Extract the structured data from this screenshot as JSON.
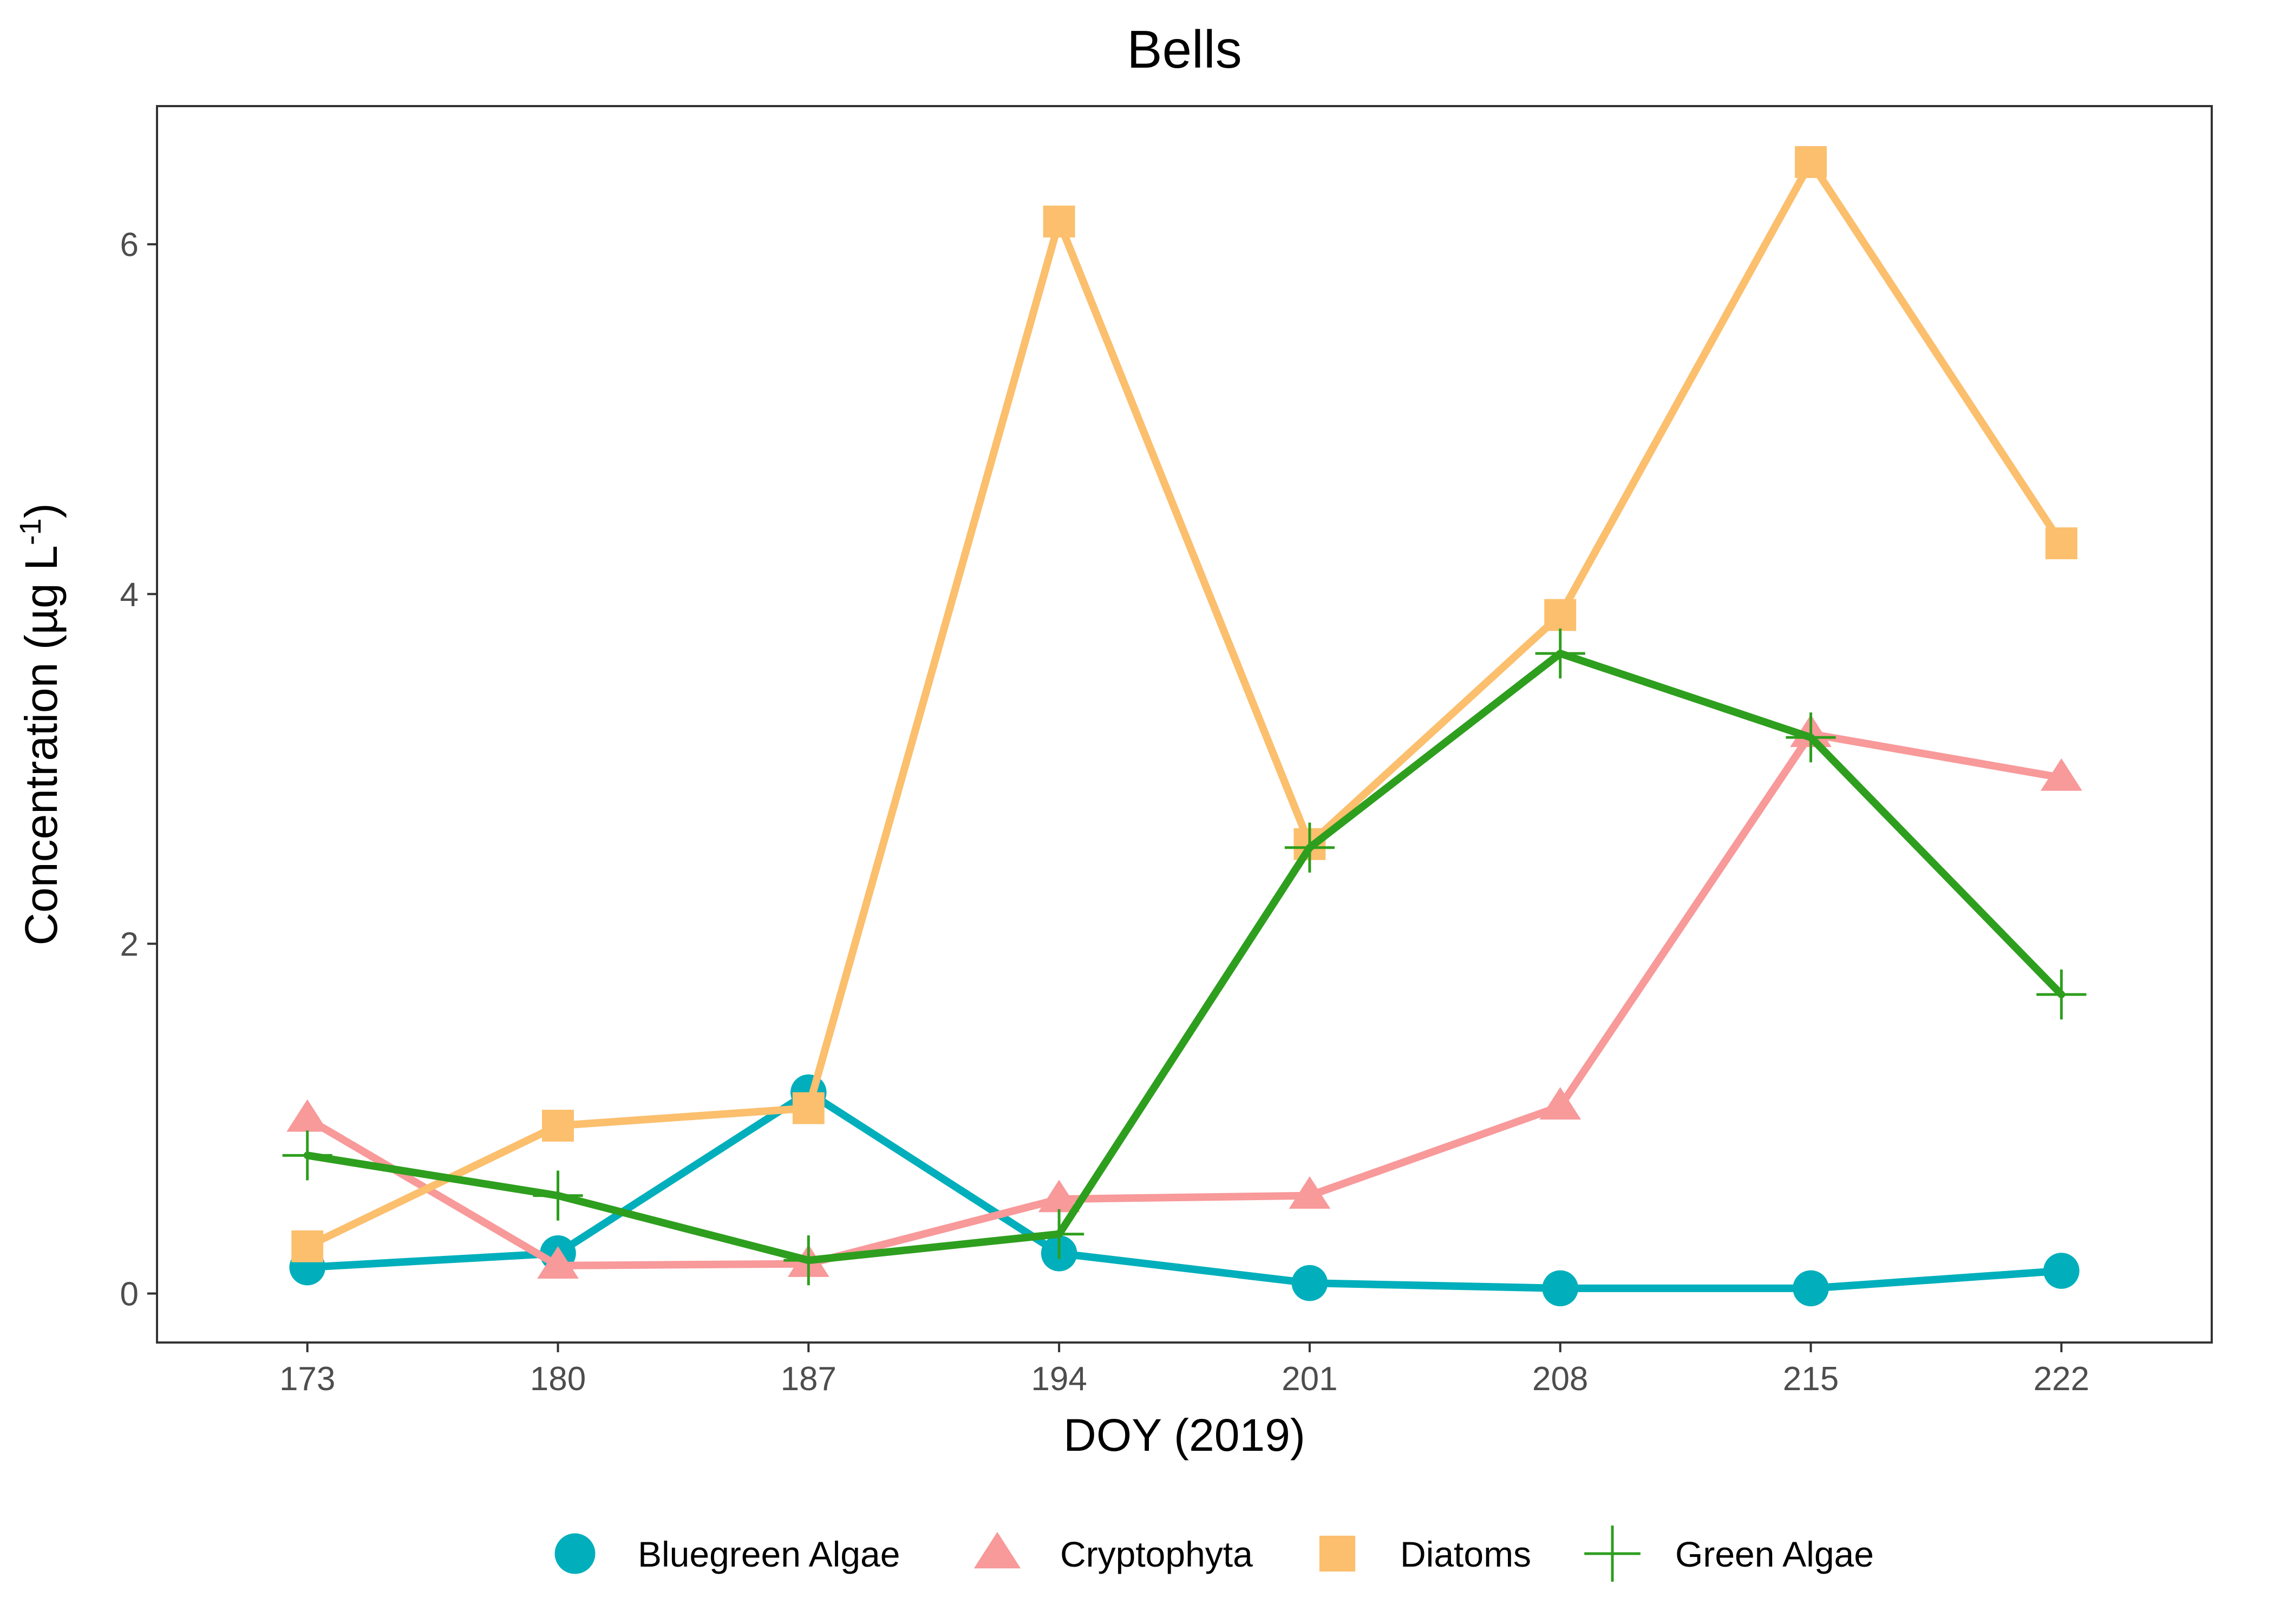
{
  "chart_data": {
    "type": "line",
    "title": "Bells",
    "xlabel": "DOY (2019)",
    "ylabel_main": "Concentration (µg L",
    "ylabel_sup": "-1",
    "ylabel_close": ")",
    "x": [
      173,
      180,
      187,
      194,
      201,
      208,
      215,
      222
    ],
    "xlim": [
      168.8,
      226.2
    ],
    "ylim": [
      -0.28,
      6.79
    ],
    "y_ticks": [
      0,
      2,
      4,
      6
    ],
    "grid": false,
    "legend_position": "bottom",
    "series": [
      {
        "name": "Bluegreen Algae",
        "color": "#00AFBB",
        "marker": "circle",
        "values": [
          0.15,
          0.23,
          1.15,
          0.23,
          0.06,
          0.03,
          0.03,
          0.13
        ]
      },
      {
        "name": "Cryptophyta",
        "color": "#F8999A",
        "marker": "triangle",
        "values": [
          1.0,
          0.16,
          0.17,
          0.54,
          0.56,
          1.07,
          3.2,
          2.95
        ]
      },
      {
        "name": "Diatoms",
        "color": "#FBBF6D",
        "marker": "square",
        "values": [
          0.27,
          0.96,
          1.06,
          6.13,
          2.57,
          3.88,
          6.47,
          4.29
        ]
      },
      {
        "name": "Green Algae",
        "color": "#2E9E1E",
        "marker": "plus",
        "values": [
          0.79,
          0.56,
          0.19,
          0.34,
          2.55,
          3.66,
          3.18,
          1.71
        ]
      }
    ]
  }
}
